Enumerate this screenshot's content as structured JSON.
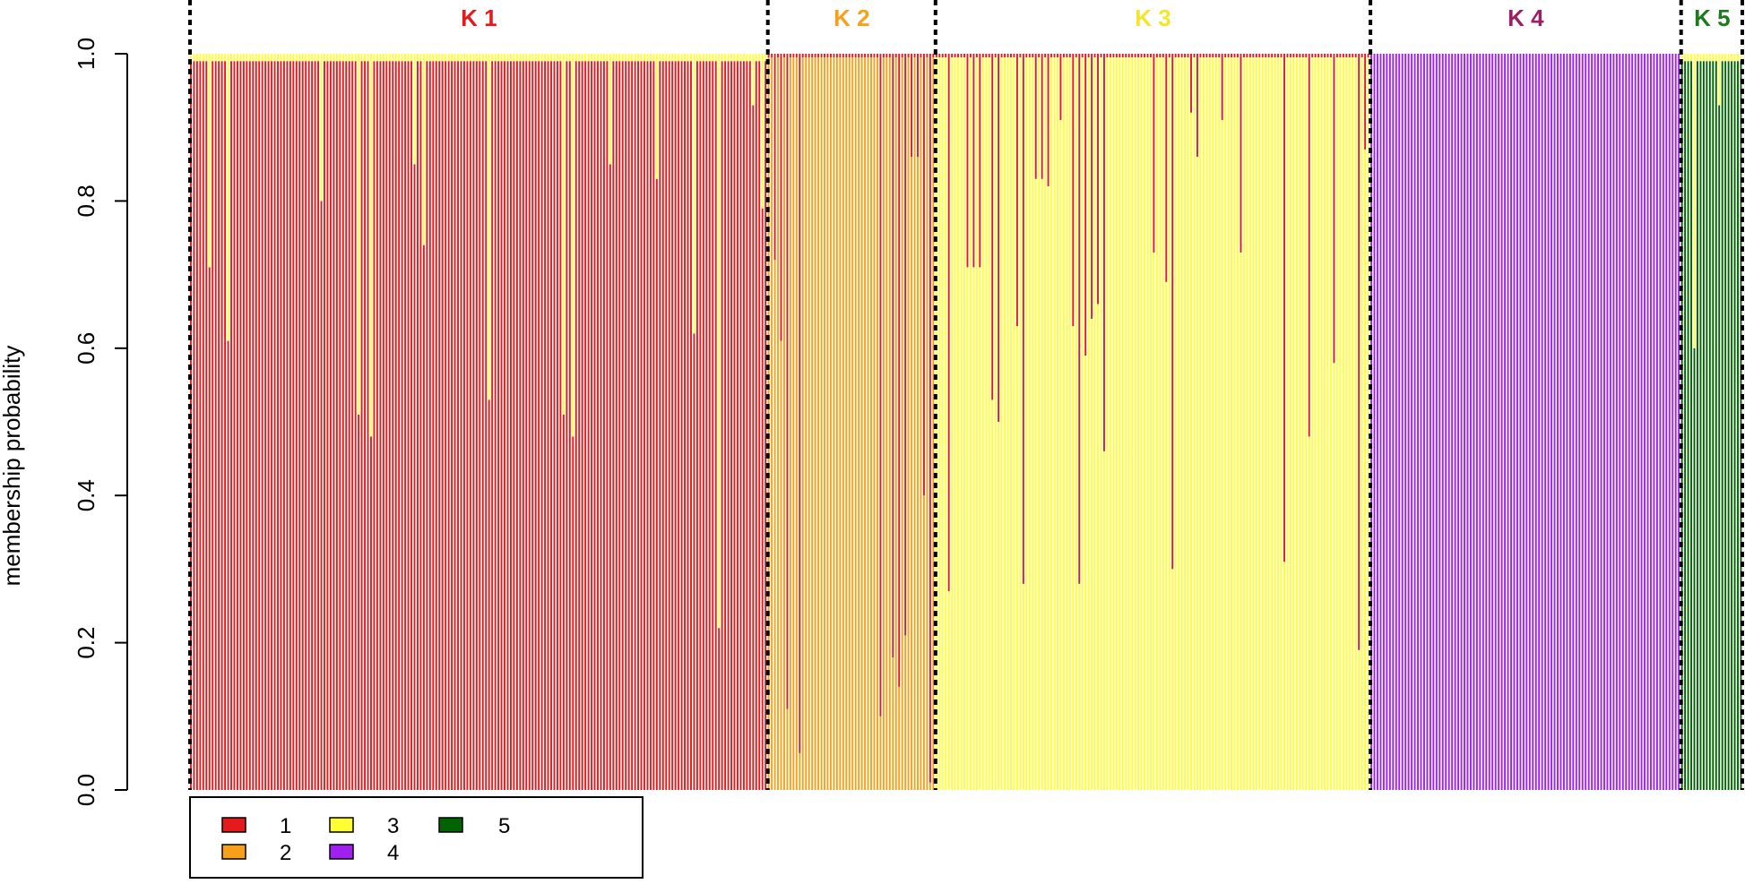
{
  "chart_data": {
    "type": "bar",
    "stacked": true,
    "ylabel": "membership probability",
    "ylim": [
      0,
      1
    ],
    "yticks": [
      "0.0",
      "0.2",
      "0.4",
      "0.6",
      "0.8",
      "1.0"
    ],
    "legend_position": "bottom-left",
    "series": [
      {
        "name": "1",
        "color": "#E41A1C"
      },
      {
        "name": "2",
        "color": "#F7A11A"
      },
      {
        "name": "3",
        "color": "#FFFF33"
      },
      {
        "name": "4",
        "color": "#A020F0"
      },
      {
        "name": "5",
        "color": "#006400"
      }
    ],
    "groups": [
      {
        "label": "K 1",
        "label_color": "#E41A1C",
        "n": 186,
        "dominant": "1",
        "base": 0.99,
        "secondary": "3",
        "dips": [
          [
            6,
            0.71
          ],
          [
            12,
            0.61
          ],
          [
            42,
            0.8
          ],
          [
            54,
            0.51
          ],
          [
            58,
            0.48
          ],
          [
            72,
            0.85
          ],
          [
            75,
            0.74
          ],
          [
            96,
            0.53
          ],
          [
            120,
            0.51
          ],
          [
            123,
            0.48
          ],
          [
            135,
            0.85
          ],
          [
            150,
            0.83
          ],
          [
            162,
            0.62
          ],
          [
            170,
            0.22
          ],
          [
            184,
            0.79
          ],
          [
            181,
            0.93
          ]
        ]
      },
      {
        "label": "K 2",
        "label_color": "#F7A11A",
        "n": 54,
        "dominant": "2",
        "base": 0.995,
        "secondary": "1",
        "dips": [
          [
            2,
            0.72
          ],
          [
            4,
            0.61
          ],
          [
            6,
            0.11
          ],
          [
            10,
            0.05
          ],
          [
            36,
            0.1
          ],
          [
            40,
            0.18
          ],
          [
            42,
            0.14
          ],
          [
            44,
            0.21
          ],
          [
            46,
            0.86
          ],
          [
            48,
            0.86
          ],
          [
            50,
            0.4
          ],
          [
            52,
            0.01
          ]
        ]
      },
      {
        "label": "K 3",
        "label_color": "#F2E52A",
        "n": 140,
        "dominant": "3",
        "base": 0.995,
        "secondary": "1",
        "dips": [
          [
            4,
            0.27
          ],
          [
            10,
            0.71
          ],
          [
            12,
            0.71
          ],
          [
            14,
            0.71
          ],
          [
            18,
            0.53
          ],
          [
            20,
            0.5
          ],
          [
            26,
            0.63
          ],
          [
            28,
            0.28
          ],
          [
            32,
            0.83
          ],
          [
            34,
            0.83
          ],
          [
            36,
            0.82
          ],
          [
            40,
            0.91
          ],
          [
            44,
            0.63
          ],
          [
            48,
            0.59
          ],
          [
            50,
            0.64
          ],
          [
            52,
            0.66
          ],
          [
            54,
            0.46
          ],
          [
            46,
            0.28
          ],
          [
            70,
            0.73
          ],
          [
            74,
            0.69
          ],
          [
            76,
            0.3
          ],
          [
            82,
            0.92
          ],
          [
            98,
            0.73
          ],
          [
            112,
            0.31
          ],
          [
            120,
            0.48
          ],
          [
            128,
            0.58
          ],
          [
            136,
            0.19
          ],
          [
            138,
            0.87
          ],
          [
            92,
            0.91
          ],
          [
            84,
            0.86
          ]
        ]
      },
      {
        "label": "K 4",
        "label_color": "#9E1F63",
        "n": 100,
        "dominant": "4",
        "base": 1.0,
        "secondary": "3",
        "dips": []
      },
      {
        "label": "K 5",
        "label_color": "#1C7B1C",
        "n": 20,
        "dominant": "5",
        "base": 0.99,
        "secondary": "3",
        "dips": [
          [
            4,
            0.6
          ],
          [
            12,
            0.93
          ]
        ]
      }
    ]
  }
}
